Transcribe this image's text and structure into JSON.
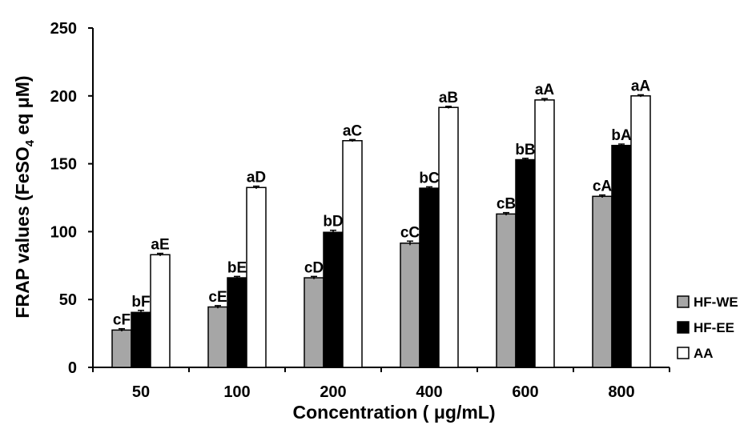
{
  "chart_data": {
    "type": "bar",
    "title": "",
    "xlabel": "Concentration ( μg/mL)",
    "ylabel_main": "FRAP values (FeSO",
    "ylabel_sub": "4",
    "ylabel_end": " eq μM)",
    "categories": [
      "50",
      "100",
      "200",
      "400",
      "600",
      "800"
    ],
    "ylim": [
      0,
      250
    ],
    "yticks": [
      0,
      50,
      100,
      150,
      200,
      250
    ],
    "grid": false,
    "legend_position": "right",
    "series": [
      {
        "name": "HF-WE",
        "color": "#a6a6a6",
        "values": [
          27.5,
          44.5,
          66,
          91.5,
          113,
          126
        ],
        "errors": [
          1,
          1,
          1,
          1.5,
          1,
          1
        ],
        "labels": [
          "cF",
          "cE",
          "cD",
          "cC",
          "cB",
          "cA"
        ]
      },
      {
        "name": "HF-EE",
        "color": "#000000",
        "values": [
          40.5,
          66,
          99.5,
          132,
          153,
          163.5
        ],
        "errors": [
          1.5,
          1,
          1.5,
          1,
          1,
          1
        ],
        "labels": [
          "bF",
          "bE",
          "bD",
          "bC",
          "bB",
          "bA"
        ]
      },
      {
        "name": "AA",
        "color": "#ffffff",
        "values": [
          83,
          132.5,
          167,
          191.5,
          197,
          200
        ],
        "errors": [
          1,
          1,
          0.8,
          0.8,
          1,
          0.8
        ],
        "labels": [
          "aE",
          "aD",
          "aC",
          "aB",
          "aA",
          "aA"
        ]
      }
    ]
  }
}
